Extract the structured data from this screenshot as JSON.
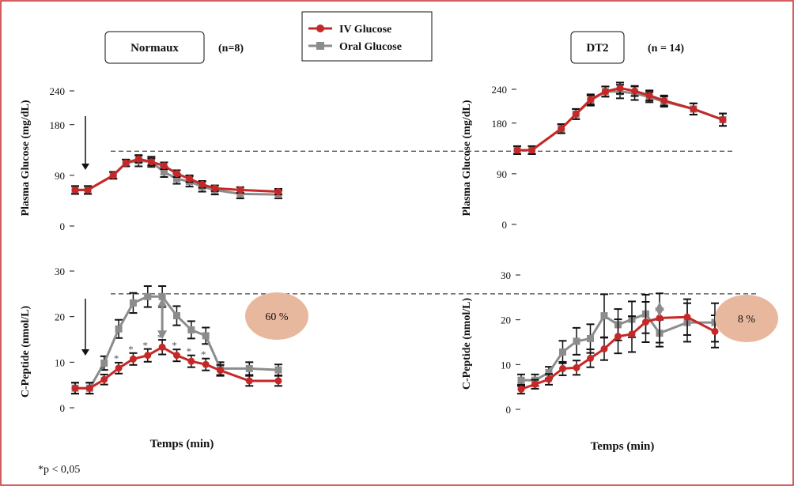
{
  "legend": {
    "items": [
      {
        "label": "IV Glucose",
        "color": "#c62828",
        "marker": "circle"
      },
      {
        "label": "Oral Glucose",
        "color": "#8c8c8c",
        "marker": "square"
      }
    ]
  },
  "colors": {
    "iv": "#c62828",
    "oral": "#8c8c8c",
    "badge": "#e8b89e",
    "frame": "#c62828",
    "errorbar": "#111111"
  },
  "footnote": "*p < 0,05",
  "x_label": "Temps (min)",
  "chart_data": [
    {
      "id": "normaux-glucose",
      "type": "line",
      "group": "Normaux",
      "n_label": "(n=8)",
      "ylabel": "Plasma Glucose (mg/dL)",
      "xlabel": "Temps (min)",
      "ylim": [
        0,
        240
      ],
      "yticks": [
        0,
        90,
        180,
        240
      ],
      "reference_line": 133,
      "arrow_annotation": true,
      "x": [
        0,
        1,
        3,
        4,
        5,
        6,
        7,
        8,
        9,
        10,
        11,
        13,
        16
      ],
      "series": [
        {
          "name": "IV Glucose",
          "values": [
            64,
            64,
            90,
            112,
            119,
            114,
            107,
            93,
            84,
            74,
            67,
            64,
            61
          ],
          "errors": [
            7,
            7,
            6,
            6,
            6,
            6,
            6,
            6,
            6,
            6,
            5,
            5,
            5
          ]
        },
        {
          "name": "Oral Glucose",
          "values": [
            64,
            64,
            90,
            112,
            116,
            114,
            96,
            84,
            79,
            70,
            64,
            57,
            56
          ],
          "errors": [
            7,
            7,
            6,
            6,
            10,
            9,
            9,
            9,
            9,
            9,
            8,
            8,
            7
          ]
        }
      ]
    },
    {
      "id": "normaux-cpeptide",
      "type": "line",
      "group": "Normaux",
      "ylabel": "C-Peptide (nmol/L)",
      "xlabel": "Temps (min)",
      "ylim": [
        0,
        30
      ],
      "yticks": [
        0,
        10,
        20,
        30
      ],
      "reference_line": 25,
      "arrow_annotation": true,
      "badge": "60 %",
      "asterisks": "*",
      "x": [
        0,
        1,
        2,
        3,
        4,
        5,
        6,
        7,
        8,
        9,
        10,
        12,
        14
      ],
      "series": [
        {
          "name": "IV Glucose",
          "values": [
            4.3,
            4.3,
            6.2,
            8.7,
            10.7,
            11.5,
            13.3,
            11.5,
            10.2,
            9.5,
            8.2,
            5.9,
            5.9
          ],
          "errors": [
            1.2,
            1.2,
            1.1,
            1.2,
            1.3,
            1.4,
            1.6,
            1.3,
            1.3,
            1.3,
            1.2,
            1.1,
            1.1
          ]
        },
        {
          "name": "Oral Glucose",
          "values": [
            4.3,
            4.3,
            9.8,
            17.3,
            23.0,
            24.4,
            24.4,
            20.2,
            17.1,
            15.8,
            8.6,
            8.6,
            8.3
          ],
          "errors": [
            1.2,
            1.2,
            1.5,
            2.0,
            2.2,
            2.3,
            2.3,
            2.1,
            1.9,
            1.8,
            1.4,
            1.4,
            1.2
          ]
        }
      ]
    },
    {
      "id": "dt2-glucose",
      "type": "line",
      "group": "DT2",
      "n_label": "(n = 14)",
      "ylabel": "Plasma Glucose (mg/dL)",
      "xlabel": "Temps (min)",
      "ylim": [
        0,
        240
      ],
      "yticks": [
        0,
        90,
        180,
        240
      ],
      "reference_line": 133,
      "x": [
        0,
        1,
        3,
        4,
        5,
        6,
        7,
        8,
        9,
        10,
        12,
        14
      ],
      "series": [
        {
          "name": "IV Glucose",
          "values": [
            132,
            132,
            170,
            196,
            222,
            236,
            242,
            237,
            229,
            220,
            205,
            186
          ],
          "errors": [
            7,
            7,
            8,
            9,
            9,
            9,
            10,
            9,
            9,
            9,
            10,
            11
          ]
        },
        {
          "name": "Oral Glucose",
          "values": [
            132,
            132,
            170,
            196,
            220,
            236,
            236,
            233,
            226,
            218,
            205,
            186
          ],
          "errors": [
            7,
            7,
            8,
            9,
            9,
            9,
            12,
            12,
            9,
            9,
            10,
            11
          ]
        }
      ]
    },
    {
      "id": "dt2-cpeptide",
      "type": "line",
      "group": "DT2",
      "ylabel": "C-Peptide (nmol/L)",
      "xlabel": "Temps (min)",
      "ylim": [
        0,
        30
      ],
      "yticks": [
        0,
        10,
        20,
        30
      ],
      "reference_line": 25,
      "badge": "8 %",
      "x": [
        0,
        1,
        2,
        3,
        4,
        5,
        6,
        7,
        8,
        9,
        10,
        12,
        14
      ],
      "series": [
        {
          "name": "IV Glucose",
          "values": [
            4.5,
            5.6,
            6.7,
            9.1,
            9.3,
            11.4,
            13.5,
            16.3,
            16.8,
            19.5,
            20.4,
            20.6,
            17.4
          ],
          "errors": [
            1.0,
            1.0,
            1.2,
            1.5,
            1.6,
            2.0,
            2.5,
            3.8,
            4.0,
            4.5,
            5.5,
            4.0,
            3.6
          ]
        },
        {
          "name": "Oral Glucose",
          "values": [
            6.5,
            6.5,
            8.2,
            12.8,
            15.2,
            15.8,
            20.9,
            18.9,
            20.1,
            21.3,
            17.0,
            19.4,
            19.4
          ],
          "errors": [
            1.3,
            1.3,
            1.3,
            2.5,
            3.0,
            3.2,
            4.8,
            3.5,
            4.0,
            4.3,
            3.0,
            4.3,
            4.3
          ]
        }
      ]
    }
  ]
}
